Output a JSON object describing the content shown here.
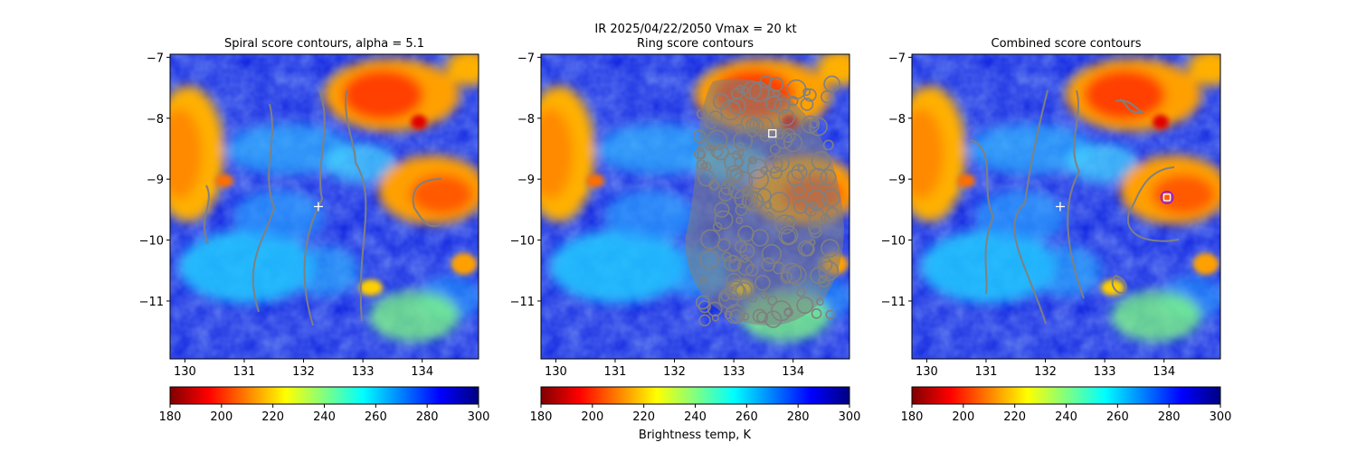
{
  "suptitle": "IR  2025/04/22/2050    Vmax = 20 kt",
  "colorbar_label": "Brightness temp, K",
  "colormap": [
    "#800000",
    "#ff0000",
    "#ff8000",
    "#ffff00",
    "#80ff80",
    "#00ffff",
    "#0080ff",
    "#0000ff",
    "#000080"
  ],
  "contour_color": "#808080",
  "chart_data": [
    {
      "type": "heatmap",
      "title": "Spiral score contours, alpha =  5.1",
      "xlim": [
        129.75,
        134.95
      ],
      "ylim": [
        -11.95,
        -6.95
      ],
      "x_ticks": [
        "130",
        "131",
        "132",
        "133",
        "134"
      ],
      "x_tick_values": [
        130,
        131,
        132,
        133,
        134
      ],
      "y_ticks": [
        "−7",
        "−8",
        "−9",
        "−10",
        "−11"
      ],
      "y_tick_values": [
        -7,
        -8,
        -9,
        -10,
        -11
      ],
      "colorbar": {
        "min": 180,
        "max": 300,
        "ticks": [
          "180",
          "200",
          "220",
          "240",
          "260",
          "280",
          "300"
        ],
        "tick_values": [
          180,
          200,
          220,
          240,
          260,
          280,
          300
        ]
      },
      "marker": {
        "symbol": "plus",
        "lon": 132.25,
        "lat": -9.45
      }
    },
    {
      "type": "heatmap",
      "title": "Ring score contours",
      "xlim": [
        129.75,
        134.95
      ],
      "ylim": [
        -11.95,
        -6.95
      ],
      "x_ticks": [
        "130",
        "131",
        "132",
        "133",
        "134"
      ],
      "x_tick_values": [
        130,
        131,
        132,
        133,
        134
      ],
      "y_ticks": [
        "−7",
        "−8",
        "−9",
        "−10",
        "−11"
      ],
      "y_tick_values": [
        -7,
        -8,
        -9,
        -10,
        -11
      ],
      "colorbar": {
        "min": 180,
        "max": 300,
        "ticks": [
          "180",
          "200",
          "220",
          "240",
          "260",
          "280",
          "300"
        ],
        "tick_values": [
          180,
          200,
          220,
          240,
          260,
          280,
          300
        ]
      },
      "marker": {
        "symbol": "square",
        "lon": 133.65,
        "lat": -8.25
      }
    },
    {
      "type": "heatmap",
      "title": "Combined score contours",
      "xlim": [
        129.75,
        134.95
      ],
      "ylim": [
        -11.95,
        -6.95
      ],
      "x_ticks": [
        "130",
        "131",
        "132",
        "133",
        "134"
      ],
      "x_tick_values": [
        130,
        131,
        132,
        133,
        134
      ],
      "y_ticks": [
        "−7",
        "−8",
        "−9",
        "−10",
        "−11"
      ],
      "y_tick_values": [
        -7,
        -8,
        -9,
        -10,
        -11
      ],
      "colorbar": {
        "min": 180,
        "max": 300,
        "ticks": [
          "180",
          "200",
          "220",
          "240",
          "260",
          "280",
          "300"
        ],
        "tick_values": [
          180,
          200,
          220,
          240,
          260,
          280,
          300
        ]
      },
      "marker": {
        "symbol": "plus",
        "lon": 132.25,
        "lat": -9.45
      },
      "marker2": {
        "symbol": "circle-square",
        "lon": 134.05,
        "lat": -9.3
      }
    }
  ]
}
